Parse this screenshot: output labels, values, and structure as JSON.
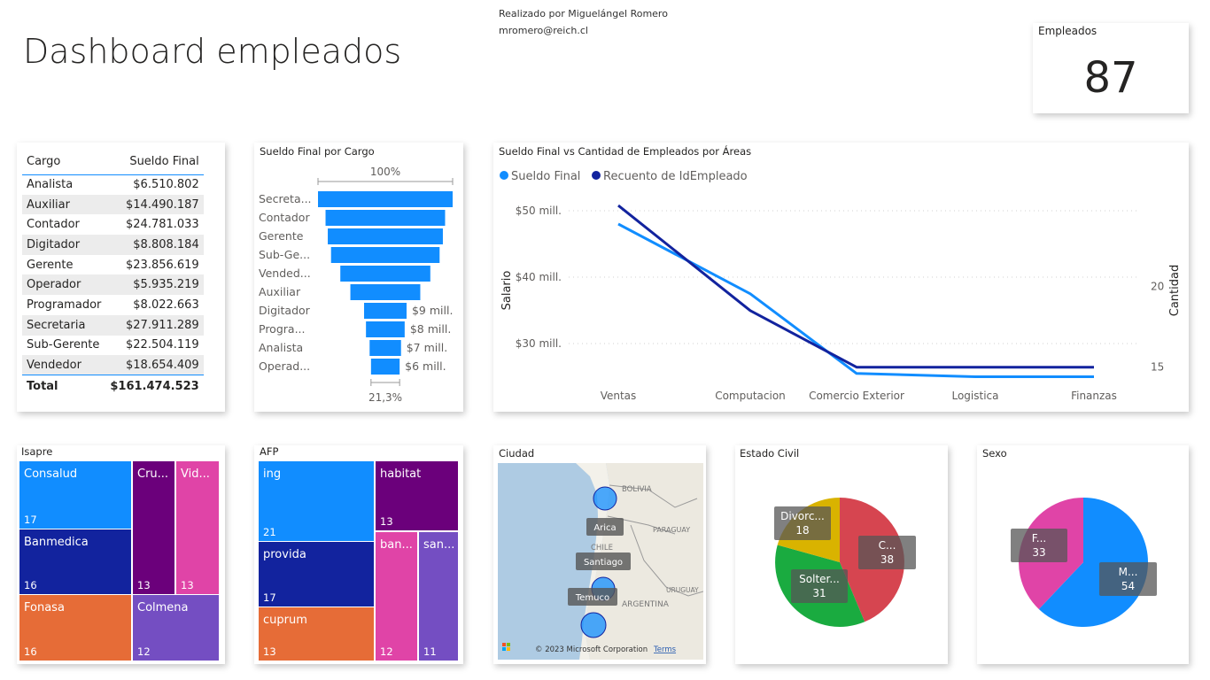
{
  "header": {
    "title": "Dashboard empleados",
    "author_line1": "Realizado por Miguelángel Romero",
    "author_line2": "mromero@reich.cl"
  },
  "kpi": {
    "label": "Empleados",
    "value": "87"
  },
  "colors": {
    "light_blue": "#118dff",
    "dark_blue": "#12239e",
    "orange": "#e66c37",
    "purple": "#6b007b",
    "pink": "#e044a7",
    "violet": "#744ec2",
    "red": "#d64550",
    "green": "#1aab40",
    "yellow": "#d9b300"
  },
  "table": {
    "headers": [
      "Cargo",
      "Sueldo Final"
    ],
    "rows": [
      [
        "Analista",
        "$6.510.802"
      ],
      [
        "Auxiliar",
        "$14.490.187"
      ],
      [
        "Contador",
        "$24.781.033"
      ],
      [
        "Digitador",
        "$8.808.184"
      ],
      [
        "Gerente",
        "$23.856.619"
      ],
      [
        "Operador",
        "$5.935.219"
      ],
      [
        "Programador",
        "$8.022.663"
      ],
      [
        "Secretaria",
        "$27.911.289"
      ],
      [
        "Sub-Gerente",
        "$22.504.119"
      ],
      [
        "Vendedor",
        "$18.654.409"
      ]
    ],
    "total": [
      "Total",
      "$161.474.523"
    ]
  },
  "chart_data": [
    {
      "type": "bar",
      "subtype": "funnel",
      "title": "Sueldo Final por Cargo",
      "categories": [
        "Secreta...",
        "Contador",
        "Gerente",
        "Sub-Ge...",
        "Vended...",
        "Auxiliar",
        "Digitador",
        "Progra...",
        "Analista",
        "Operad..."
      ],
      "values": [
        27911289,
        24781033,
        23856619,
        22504119,
        18654409,
        14490187,
        8808184,
        8022663,
        6510802,
        5935219
      ],
      "data_labels": [
        "",
        "",
        "",
        "",
        "",
        "",
        "$9 mill.",
        "$8 mill.",
        "$7 mill.",
        "$6 mill."
      ],
      "top_label": "100%",
      "bottom_label": "21,3%"
    },
    {
      "type": "line",
      "title": "Sueldo Final vs Cantidad de Empleados por Áreas",
      "categories": [
        "Ventas",
        "Computacion",
        "Comercio Exterior",
        "Logistica",
        "Finanzas"
      ],
      "series": [
        {
          "name": "Sueldo Final",
          "axis": "left",
          "values": [
            48000000,
            37500000,
            25500000,
            25000000,
            25000000
          ],
          "color": "#118dff"
        },
        {
          "name": "Recuento de IdEmpleado",
          "axis": "right",
          "values": [
            25,
            18.5,
            15,
            15,
            15
          ],
          "color": "#12239e"
        }
      ],
      "ylabel": "Salario",
      "y2label": "Cantidad",
      "ylim": [
        24000000,
        52000000
      ],
      "y2lim": [
        14,
        25.5
      ],
      "yticks": [
        50000000,
        40000000,
        30000000
      ],
      "ytick_labels": [
        "$50 mill.",
        "$40 mill.",
        "$30 mill."
      ],
      "y2ticks": [
        20,
        15
      ],
      "y2tick_labels": [
        "20",
        "15"
      ],
      "legend": "top-left",
      "grid": true
    },
    {
      "type": "treemap",
      "title": "Isapre",
      "items": [
        {
          "label": "Consalud",
          "value": "17",
          "color": "#118dff"
        },
        {
          "label": "Banmedica",
          "value": "16",
          "color": "#12239e"
        },
        {
          "label": "Fonasa",
          "value": "16",
          "color": "#e66c37"
        },
        {
          "label": "Cru...",
          "value": "13",
          "color": "#6b007b"
        },
        {
          "label": "Vid...",
          "value": "13",
          "color": "#e044a7"
        },
        {
          "label": "Colmena",
          "value": "12",
          "color": "#744ec2"
        }
      ]
    },
    {
      "type": "treemap",
      "title": "AFP",
      "items": [
        {
          "label": "ing",
          "value": "21",
          "color": "#118dff"
        },
        {
          "label": "provida",
          "value": "17",
          "color": "#12239e"
        },
        {
          "label": "cuprum",
          "value": "13",
          "color": "#e66c37"
        },
        {
          "label": "habitat",
          "value": "13",
          "color": "#6b007b"
        },
        {
          "label": "ban...",
          "value": "12",
          "color": "#e044a7"
        },
        {
          "label": "san...",
          "value": "11",
          "color": "#744ec2"
        }
      ]
    },
    {
      "type": "pie",
      "title": "Estado Civil",
      "labels": [
        "C...",
        "Solter...",
        "Divorc..."
      ],
      "values": [
        38,
        31,
        18
      ],
      "colors": [
        "#d64550",
        "#1aab40",
        "#d9b300"
      ]
    },
    {
      "type": "pie",
      "title": "Sexo",
      "labels": [
        "M...",
        "F..."
      ],
      "values": [
        54,
        33
      ],
      "colors": [
        "#118dff",
        "#e044a7"
      ]
    }
  ],
  "map": {
    "title": "Ciudad",
    "cities": [
      "Arica",
      "Santiago",
      "Temuco"
    ],
    "countries": [
      "BOLIVIA",
      "PARAGUAY",
      "CHILE",
      "ARGENTINA",
      "URUGUAY"
    ],
    "copyright": "© 2023 Microsoft Corporation",
    "terms": "Terms",
    "ms_logo": "Microsoft Bing"
  }
}
